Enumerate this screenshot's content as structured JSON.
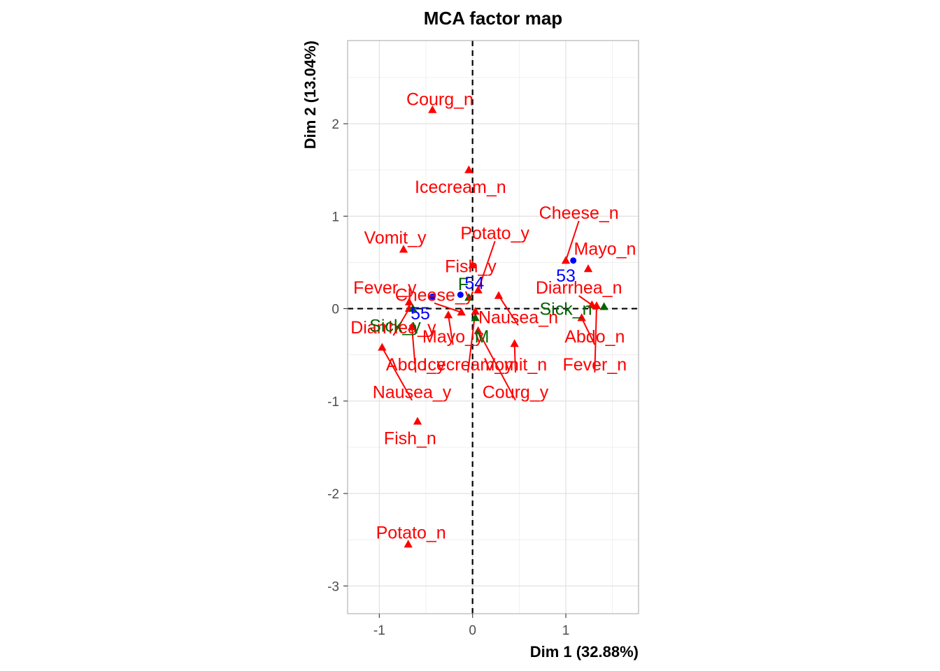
{
  "chart_data": {
    "type": "scatter",
    "title": "MCA factor map",
    "xlabel": "Dim 1 (32.88%)",
    "ylabel": "Dim 2 (13.04%)",
    "xlim": [
      -1.34,
      1.78
    ],
    "ylim": [
      -3.3,
      2.9
    ],
    "x_ticks": [
      -1,
      0,
      1
    ],
    "y_ticks": [
      -3,
      -2,
      -1,
      0,
      1,
      2
    ],
    "grid": true,
    "reference_lines": {
      "x": 0,
      "y": 0
    },
    "colors": {
      "active": "#ff0000",
      "supplementary": "#006400",
      "individuals": "#0000ff"
    },
    "active_categories": [
      {
        "label": "Courg_n",
        "x": -0.43,
        "y": 2.15,
        "lx": -0.35,
        "ly": 2.27
      },
      {
        "label": "Icecream_n",
        "x": -0.04,
        "y": 1.5,
        "lx": -0.13,
        "ly": 1.32
      },
      {
        "label": "Cheese_n",
        "x": 1.0,
        "y": 0.52,
        "lx": 1.14,
        "ly": 1.04,
        "leader": true
      },
      {
        "label": "Potato_y",
        "x": 0.06,
        "y": 0.2,
        "lx": 0.24,
        "ly": 0.82,
        "leader": true
      },
      {
        "label": "Vomit_y",
        "x": -0.74,
        "y": 0.64,
        "lx": -0.83,
        "ly": 0.77
      },
      {
        "label": "Mayo_n",
        "x": 1.24,
        "y": 0.43,
        "lx": 1.42,
        "ly": 0.65
      },
      {
        "label": "Fish_y",
        "x": 0.0,
        "y": 0.47,
        "lx": -0.02,
        "ly": 0.46
      },
      {
        "label": "Diarrhea_n",
        "x": 1.28,
        "y": 0.04,
        "lx": 1.14,
        "ly": 0.23,
        "leader": true
      },
      {
        "label": "Fever_y",
        "x": -0.68,
        "y": 0.07,
        "lx": -0.94,
        "ly": 0.23
      },
      {
        "label": "Cheese_y",
        "x": -0.12,
        "y": -0.04,
        "lx": -0.41,
        "ly": 0.15,
        "leader": true
      },
      {
        "label": "Nausea_n",
        "x": 0.28,
        "y": 0.14,
        "lx": 0.49,
        "ly": -0.09,
        "leader": true
      },
      {
        "label": "Abdo_n",
        "x": 1.17,
        "y": -0.1,
        "lx": 1.31,
        "ly": -0.3,
        "leader": true
      },
      {
        "label": "Diarrhea_y",
        "x": -0.68,
        "y": 0.0,
        "lx": -0.85,
        "ly": -0.2,
        "leader": true
      },
      {
        "label": "Mayo_y",
        "x": -0.26,
        "y": -0.07,
        "lx": -0.21,
        "ly": -0.3,
        "leader": true
      },
      {
        "label": "Fever_n",
        "x": 1.33,
        "y": 0.03,
        "lx": 1.31,
        "ly": -0.6,
        "leader": true
      },
      {
        "label": "Vomit_n",
        "x": 0.45,
        "y": -0.38,
        "lx": 0.46,
        "ly": -0.6,
        "leader": true
      },
      {
        "label": "Abdo_y",
        "x": -0.65,
        "y": -0.2,
        "lx": -0.61,
        "ly": -0.6,
        "leader": true
      },
      {
        "label": "Icecream_y",
        "x": 0.03,
        "y": -0.03,
        "lx": -0.05,
        "ly": -0.6,
        "leader": true
      },
      {
        "label": "Courg_y",
        "x": 0.06,
        "y": -0.24,
        "lx": 0.46,
        "ly": -0.9,
        "leader": true
      },
      {
        "label": "Nausea_y",
        "x": -0.97,
        "y": -0.42,
        "lx": -0.65,
        "ly": -0.9,
        "leader": true
      },
      {
        "label": "Fish_n",
        "x": -0.59,
        "y": -1.22,
        "lx": -0.67,
        "ly": -1.4
      },
      {
        "label": "Potato_n",
        "x": -0.69,
        "y": -2.55,
        "lx": -0.66,
        "ly": -2.42
      }
    ],
    "supplementary_categories": [
      {
        "label": "F",
        "x": -0.04,
        "y": 0.12,
        "lx": -0.1,
        "ly": 0.27
      },
      {
        "label": "M",
        "x": 0.03,
        "y": -0.1,
        "lx": 0.1,
        "ly": -0.3
      },
      {
        "label": "Sick_n",
        "x": 1.41,
        "y": 0.02,
        "lx": 1.0,
        "ly": 0.0
      },
      {
        "label": "Sick_y",
        "x": -0.64,
        "y": 0.0,
        "lx": -0.83,
        "ly": -0.18
      }
    ],
    "individuals": [
      {
        "label": "53",
        "x": 1.08,
        "y": 0.52,
        "lx": 1.0,
        "ly": 0.36
      },
      {
        "label": "54",
        "x": -0.13,
        "y": 0.15,
        "lx": 0.02,
        "ly": 0.28
      },
      {
        "label": "55",
        "x": -0.43,
        "y": 0.13,
        "lx": -0.56,
        "ly": -0.05
      }
    ]
  }
}
